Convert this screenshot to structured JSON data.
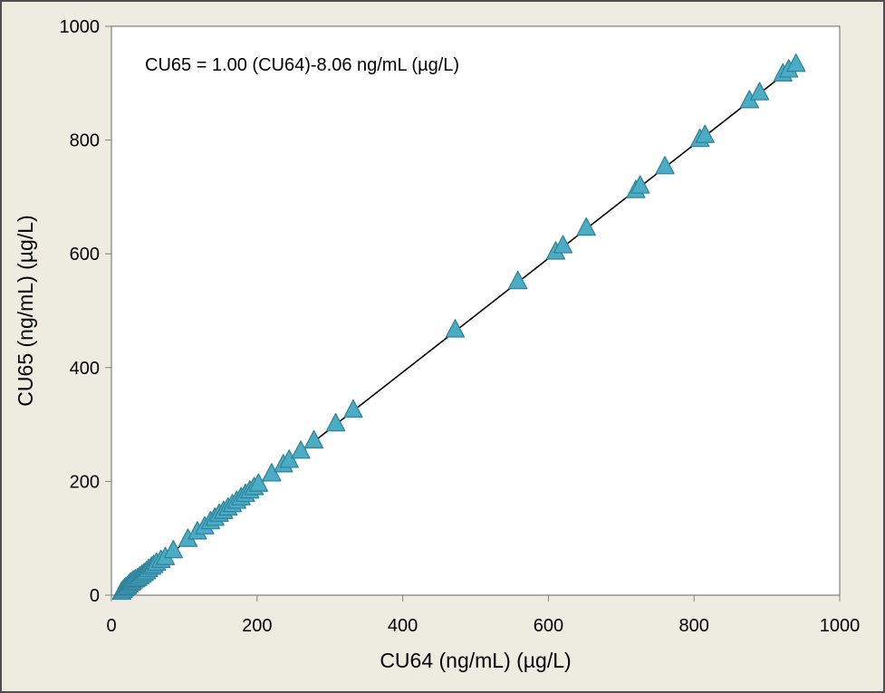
{
  "chart_data": {
    "type": "scatter",
    "annotation": "CU65 = 1.00 (CU64)-8.06 ng/mL (µg/L)",
    "xlabel": "CU64 (ng/mL)  (µg/L)",
    "ylabel": "CU65 (ng/mL)  (µg/L)",
    "xlim": [
      0,
      1000
    ],
    "ylim": [
      0,
      1000
    ],
    "x_ticks": [
      "0",
      "200",
      "400",
      "600",
      "800",
      "1000"
    ],
    "y_ticks": [
      "0",
      "200",
      "400",
      "600",
      "800",
      "1000"
    ],
    "grid": false,
    "legend": "none",
    "marker": "triangle",
    "marker_color": "#4bacc6",
    "marker_edge_color": "#31849b",
    "line_color": "#000000",
    "fit_line": {
      "slope": 1.0,
      "intercept": -8.06
    },
    "series": [
      {
        "x": [
          14,
          16,
          18,
          20,
          22,
          24,
          26,
          28,
          30,
          33,
          36,
          39,
          42,
          45,
          48,
          51,
          55,
          58,
          62,
          68,
          74,
          85,
          105,
          118,
          128,
          136,
          142,
          148,
          154,
          160,
          166,
          172,
          178,
          184,
          190,
          196,
          202,
          220,
          236,
          244,
          260,
          278,
          308,
          332,
          472,
          558,
          610,
          620,
          652,
          720,
          726,
          760,
          808,
          815,
          876,
          890,
          922,
          930,
          940
        ],
        "y": [
          4,
          7,
          10,
          12,
          14,
          17,
          20,
          21,
          24,
          26,
          28,
          31,
          34,
          37,
          40,
          44,
          48,
          51,
          55,
          60,
          65,
          77,
          97,
          110,
          119,
          128,
          134,
          141,
          146,
          152,
          158,
          164,
          170,
          176,
          182,
          188,
          194,
          212,
          228,
          236,
          252,
          270,
          300,
          324,
          465,
          550,
          602,
          613,
          644,
          710,
          718,
          752,
          800,
          807,
          868,
          882,
          915,
          922,
          932
        ]
      }
    ]
  }
}
